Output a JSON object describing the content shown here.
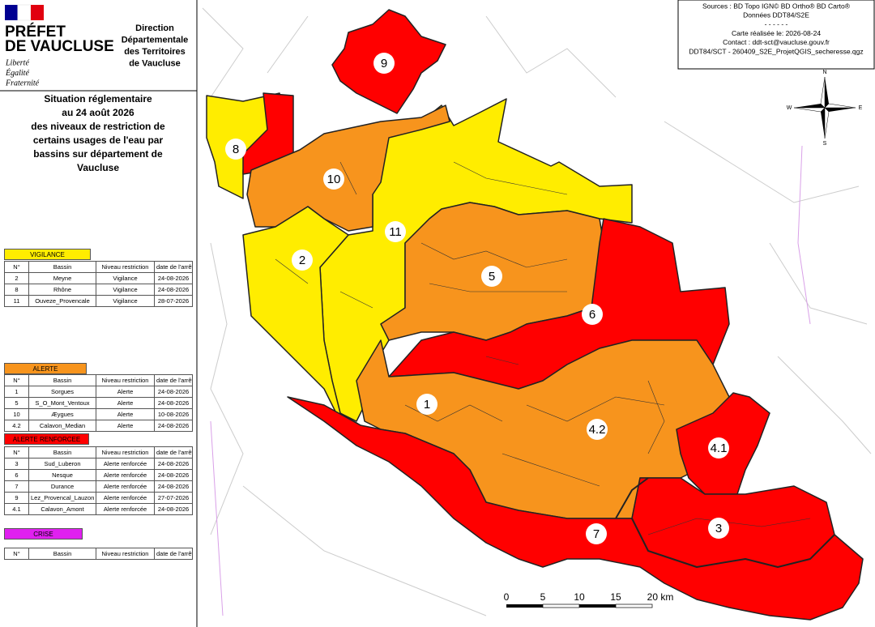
{
  "header": {
    "prefet": "PRÉFET",
    "department": "DE VAUCLUSE",
    "motto": [
      "Liberté",
      "Égalité",
      "Fraternité"
    ],
    "direction": [
      "Direction",
      "Départementale",
      "des Territoires",
      "de Vaucluse"
    ]
  },
  "title": [
    "Situation réglementaire",
    "au 24 août 2026",
    "des niveaux de restriction de",
    "certains  usages de l'eau par",
    "bassins sur département de",
    "Vaucluse"
  ],
  "tables": [
    {
      "level": "VIGILANCE",
      "columns": [
        "N°",
        "Bassin",
        "Niveau restriction",
        "date de l'arrête"
      ],
      "rows": [
        [
          "2",
          "Meyne",
          "Vigilance",
          "24-08-2026"
        ],
        [
          "8",
          "Rhône",
          "Vigilance",
          "24-08-2026"
        ],
        [
          "11",
          "Ouveze_Provencale",
          "Vigilance",
          "28-07-2026"
        ]
      ]
    },
    {
      "level": "ALERTE",
      "columns": [
        "N°",
        "Bassin",
        "Niveau restriction",
        "date de l'arrête"
      ],
      "rows": [
        [
          "1",
          "Sorgues",
          "Alerte",
          "24-08-2026"
        ],
        [
          "5",
          "S_O_Mont_Ventoux",
          "Alerte",
          "24-08-2026"
        ],
        [
          "10",
          "Æygues",
          "Alerte",
          "10-08-2026"
        ],
        [
          "4.2",
          "Calavon_Median",
          "Alerte",
          "24-08-2026"
        ]
      ]
    },
    {
      "level": "ALERTE RENFORCEE",
      "columns": [
        "N°",
        "Bassin",
        "Niveau restriction",
        "date de l'arrête"
      ],
      "rows": [
        [
          "3",
          "Sud_Luberon",
          "Alerte renforcée",
          "24-08-2026"
        ],
        [
          "6",
          "Nesque",
          "Alerte renforcée",
          "24-08-2026"
        ],
        [
          "7",
          "Durance",
          "Alerte renforcée",
          "24-08-2026"
        ],
        [
          "9",
          "Lez_Provencal_Lauzon",
          "Alerte renforcée",
          "27-07-2026"
        ],
        [
          "4.1",
          "Calavon_Amont",
          "Alerte renforcée",
          "24-08-2026"
        ]
      ]
    },
    {
      "level": "CRISE",
      "columns": [
        "N°",
        "Bassin",
        "Niveau restriction",
        "date de l'arrête"
      ],
      "rows": []
    }
  ],
  "map_labels": [
    "9",
    "8",
    "10",
    "11",
    "2",
    "5",
    "6",
    "1",
    "4.2",
    "4.1",
    "7",
    "3"
  ],
  "sources": [
    "Sources : BD Topo IGN© BD Ortho® BD Carto®",
    "Données DDT84/S2E",
    "- - - - - -",
    "Carte réalisée le: 2026-08-24",
    "Contact : ddt-sct@vaucluse.gouv.fr",
    "DDT84/SCT - 260409_S2E_ProjetQGIS_secheresse.qgz"
  ],
  "compass": {
    "north": "N",
    "south": "S",
    "east": "E",
    "west": "W"
  },
  "scale": [
    "0",
    "5",
    "10",
    "15",
    "20 km"
  ]
}
